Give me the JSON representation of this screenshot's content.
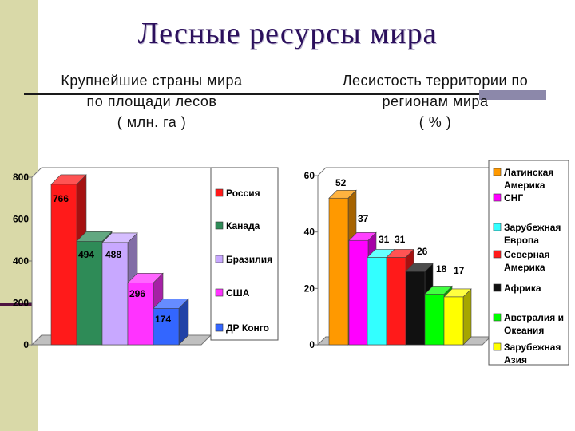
{
  "page": {
    "title": "Лесные ресурсы мира",
    "left_subtitle": [
      "Крупнейшие страны мира",
      "по площади лесов",
      "( млн. га )"
    ],
    "right_subtitle": [
      "Лесистость территории по",
      "регионам мира",
      "( % )"
    ]
  },
  "chart_data": [
    {
      "type": "bar",
      "title": "Крупнейшие страны мира по площади лесов ( млн. га )",
      "categories": [
        "Россия",
        "Канада",
        "Бразилия",
        "США",
        "ДР Конго"
      ],
      "values": [
        766,
        494,
        488,
        296,
        174
      ],
      "data_labels": [
        "766",
        "494",
        "488",
        "296",
        "174"
      ],
      "colors": [
        "#ff1a1a",
        "#2e8b57",
        "#c8a8ff",
        "#ff33ff",
        "#3366ff"
      ],
      "yticks": [
        0,
        200,
        400,
        600,
        800
      ],
      "ylim": [
        0,
        800
      ],
      "legend": [
        "Россия",
        "Канада",
        "Бразилия",
        "США",
        "ДР Конго"
      ],
      "legend_position": "right",
      "grid": false,
      "style": "3d"
    },
    {
      "type": "bar",
      "title": "Лесистость территории по регионам мира ( % )",
      "categories": [
        "Латинская Америка",
        "СНГ",
        "Зарубежная Европа",
        "Северная Америка",
        "Африка",
        "Австралия и Океания",
        "Зарубежная Азия"
      ],
      "values": [
        52,
        37,
        31,
        31,
        26,
        18,
        17
      ],
      "data_labels": [
        "52",
        "37",
        "31",
        "31",
        "26",
        "18",
        "17"
      ],
      "colors": [
        "#ff9900",
        "#ff00ff",
        "#33ffff",
        "#ff1a1a",
        "#111111",
        "#00ff00",
        "#ffff00"
      ],
      "yticks": [
        0,
        20,
        40,
        60
      ],
      "ylim": [
        0,
        60
      ],
      "legend": [
        "Латинская Америка",
        "СНГ",
        "Зарубежная Европа",
        "Северная Америка",
        "Африка",
        "Австралия и Океания",
        "Зарубежная Азия"
      ],
      "legend_position": "right",
      "grid": false,
      "style": "3d"
    }
  ]
}
